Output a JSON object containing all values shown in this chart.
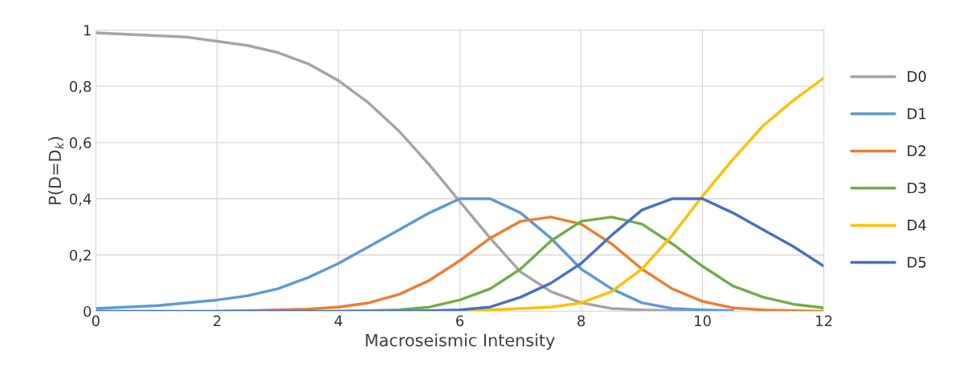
{
  "chart_data": {
    "type": "line",
    "xlabel": "Macroseismic Intensity",
    "ylabel": "P(D=D$_{k}$)",
    "x": [
      0,
      0.5,
      1,
      1.5,
      2,
      2.5,
      3,
      3.5,
      4,
      4.5,
      5,
      5.5,
      6,
      6.5,
      7,
      7.5,
      8,
      8.5,
      9,
      9.5,
      10,
      10.5,
      11,
      11.5,
      12
    ],
    "series": [
      {
        "name": "D0",
        "color": "#a5a5a5",
        "values": [
          0.99,
          0.985,
          0.98,
          0.975,
          0.96,
          0.945,
          0.92,
          0.88,
          0.82,
          0.74,
          0.64,
          0.52,
          0.39,
          0.26,
          0.14,
          0.07,
          0.03,
          0.01,
          0.005,
          0.002,
          0,
          null,
          null,
          null,
          null
        ]
      },
      {
        "name": "D1",
        "color": "#5b9bd5",
        "values": [
          0.01,
          0.015,
          0.02,
          0.03,
          0.04,
          0.055,
          0.08,
          0.12,
          0.17,
          0.23,
          0.29,
          0.35,
          0.4,
          0.4,
          0.35,
          0.26,
          0.15,
          0.08,
          0.03,
          0.01,
          0.005,
          0.002,
          null,
          null,
          null
        ]
      },
      {
        "name": "D2",
        "color": "#ed7d31",
        "values": [
          null,
          null,
          null,
          null,
          0,
          0.002,
          0.005,
          0.008,
          0.015,
          0.03,
          0.06,
          0.11,
          0.18,
          0.26,
          0.32,
          0.335,
          0.31,
          0.24,
          0.15,
          0.08,
          0.035,
          0.012,
          0.005,
          0.002,
          0
        ]
      },
      {
        "name": "D3",
        "color": "#70ad47",
        "values": [
          null,
          null,
          null,
          null,
          null,
          null,
          null,
          null,
          0,
          0.002,
          0.005,
          0.015,
          0.04,
          0.08,
          0.15,
          0.25,
          0.32,
          0.335,
          0.31,
          0.24,
          0.16,
          0.09,
          0.05,
          0.025,
          0.012
        ]
      },
      {
        "name": "D4",
        "color": "#ffc000",
        "values": [
          null,
          null,
          null,
          null,
          null,
          null,
          null,
          null,
          null,
          null,
          null,
          null,
          0,
          0.005,
          0.01,
          0.015,
          0.03,
          0.07,
          0.15,
          0.27,
          0.41,
          0.54,
          0.66,
          0.75,
          0.83
        ]
      },
      {
        "name": "D5",
        "color": "#4472c4",
        "values": [
          0,
          0,
          0,
          0,
          0,
          0,
          0,
          0,
          0,
          0,
          0,
          0.002,
          0.005,
          0.015,
          0.05,
          0.1,
          0.17,
          0.27,
          0.36,
          0.4,
          0.4,
          0.35,
          0.29,
          0.23,
          0.16
        ]
      }
    ],
    "xlim": [
      0,
      12
    ],
    "xticks": [
      0,
      2,
      4,
      6,
      8,
      10,
      12
    ],
    "ylim": [
      0,
      1
    ],
    "yticks": [
      0,
      {
        "value": 0.2,
        "label": "0,2"
      },
      {
        "value": 0.4,
        "label": "0,4"
      },
      {
        "value": 0.6,
        "label": "0,6"
      },
      {
        "value": 0.8,
        "label": "0,8"
      },
      1
    ],
    "grid": true,
    "legend": "right",
    "line_style": "solid",
    "marker": "none"
  }
}
